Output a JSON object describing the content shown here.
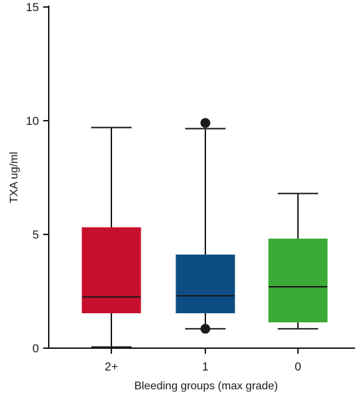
{
  "chart_data": {
    "type": "box",
    "xlabel": "Bleeding groups (max grade)",
    "ylabel": "TXA ug/ml",
    "ylim": [
      0,
      15
    ],
    "yticks": [
      0,
      5,
      10,
      15
    ],
    "grid": false,
    "categories": [
      "2+",
      "1",
      "0"
    ],
    "boxes": [
      {
        "category": "2+",
        "whisker_low": 0.05,
        "q1": 1.55,
        "median": 2.25,
        "q3": 5.3,
        "whisker_high": 9.7,
        "outliers": [],
        "color": "#C8102E"
      },
      {
        "category": "1",
        "whisker_low": 0.85,
        "q1": 1.55,
        "median": 2.3,
        "q3": 4.1,
        "whisker_high": 9.65,
        "outliers": [
          9.9,
          0.85
        ],
        "color": "#0E4C84"
      },
      {
        "category": "0",
        "whisker_low": 0.85,
        "q1": 1.15,
        "median": 2.7,
        "q3": 4.8,
        "whisker_high": 6.8,
        "outliers": [],
        "color": "#3AAA35"
      }
    ]
  }
}
